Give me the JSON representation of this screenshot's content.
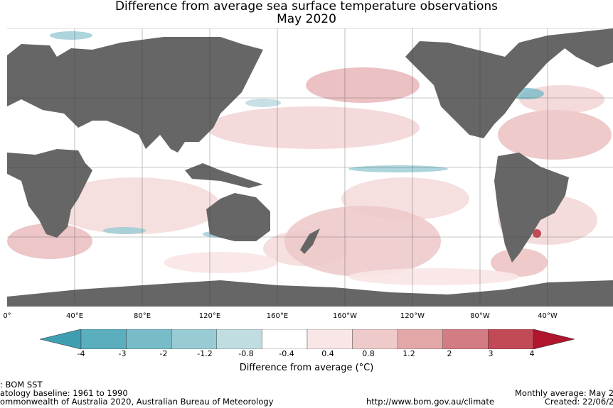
{
  "title": "Difference from average sea surface temperature observations",
  "subtitle": "May 2020",
  "longitude_ticks": [
    "0°",
    "40°E",
    "80°E",
    "120°E",
    "160°E",
    "160°W",
    "120°W",
    "80°W",
    "40°W"
  ],
  "colorbar": {
    "label": "Difference from average (°C)",
    "ticks": [
      "-4",
      "-3",
      "-2",
      "-1.2",
      "-0.8",
      "-0.4",
      "0.4",
      "0.8",
      "1.2",
      "2",
      "3",
      "4"
    ],
    "colors": [
      "#3f9fb0",
      "#5aaebe",
      "#78bcc8",
      "#99cbd4",
      "#c0dde2",
      "#ffffff",
      "#f9e6e6",
      "#efcaca",
      "#e3a7a9",
      "#d47c83",
      "#c24a57",
      "#b0152e"
    ]
  },
  "colors": {
    "land": "#666666",
    "ocean": "#ffffff",
    "grid": "#3a3a3a"
  },
  "footer": {
    "source": ": BOM SST",
    "baseline": "atology baseline: 1961 to 1990",
    "copyright": "ommonwealth of Australia 2020, Australian Bureau of Meteorology",
    "url": "http://www.bom.gov.au/climate",
    "monthly": "Monthly average: May 2",
    "created": "Created: 22/06/2"
  }
}
